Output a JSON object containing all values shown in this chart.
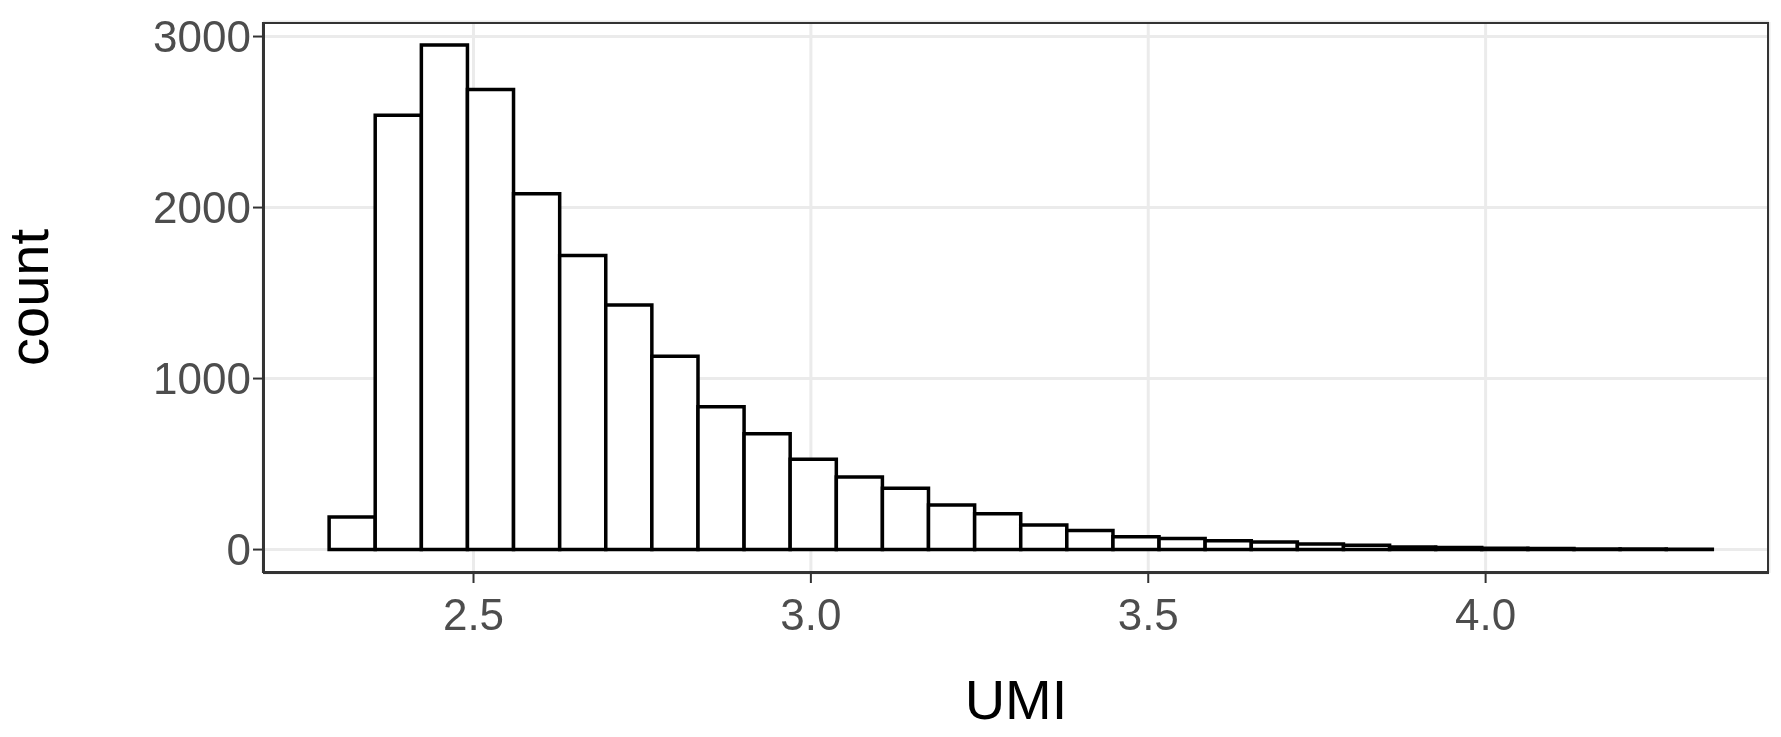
{
  "chart_data": {
    "type": "histogram",
    "xlabel": "UMI",
    "ylabel": "count",
    "bins": [
      2.286,
      2.3543,
      2.4227,
      2.491,
      2.5593,
      2.6277,
      2.696,
      2.7643,
      2.8327,
      2.901,
      2.9693,
      3.0377,
      3.106,
      3.1743,
      3.2427,
      3.311,
      3.3793,
      3.4477,
      3.516,
      3.5843,
      3.6527,
      3.721,
      3.7893,
      3.8577,
      3.926,
      3.9943,
      4.0627,
      4.131,
      4.1993,
      4.2677,
      4.336
    ],
    "values": [
      190,
      2540,
      2950,
      2690,
      2080,
      1720,
      1430,
      1130,
      835,
      678,
      528,
      424,
      359,
      261,
      209,
      144,
      111,
      75,
      65,
      52,
      45,
      33,
      26,
      15,
      12,
      8,
      6,
      4,
      3,
      2
    ],
    "color": "#ffffff",
    "xlim": [
      2.188,
      4.42
    ],
    "xticks": [
      {
        "value": 2.5,
        "label": "2.5"
      },
      {
        "value": 3,
        "label": "3.0"
      },
      {
        "value": 3.5,
        "label": "3.5"
      },
      {
        "value": 4,
        "label": "4.0"
      }
    ],
    "ylim": [
      -137,
      3085
    ],
    "yticks": [
      0,
      1000,
      2000,
      3000
    ],
    "grid": true
  }
}
